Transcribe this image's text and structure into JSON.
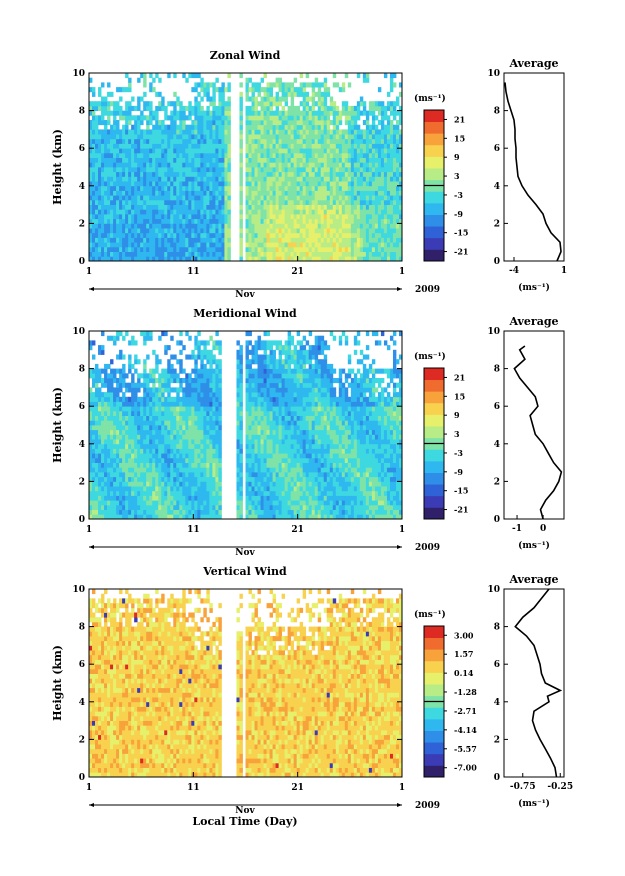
{
  "figure": {
    "xlabel": "Local Time (Day)",
    "ylabel": "Height (km)",
    "month": "Nov",
    "year": "2009",
    "avg_title": "Average",
    "unit": "(ms⁻¹)"
  },
  "chart_data": [
    {
      "type": "heatmap",
      "title": "Zonal Wind",
      "xlabel": "Local Time (Day)",
      "ylabel": "Height (km)",
      "x_ticks": [
        "1",
        "11",
        "21",
        "1"
      ],
      "y_ticks": [
        "0",
        "2",
        "4",
        "6",
        "8",
        "10"
      ],
      "ylim": [
        0,
        10
      ],
      "colorbar": {
        "unit": "(ms⁻¹)",
        "ticks": [
          "21",
          "15",
          "9",
          "3",
          "-3",
          "-9",
          "-15",
          "-21"
        ],
        "range": [
          -24,
          24
        ]
      },
      "gap_days": [
        [
          14.6,
          15.4
        ],
        [
          15.7,
          16.0
        ]
      ],
      "dense_top_km": {
        "west": 8.5,
        "mid": 9.5,
        "east": 8.5
      },
      "average": {
        "type": "line",
        "title": "Average",
        "xlabel": "(ms⁻¹)",
        "xlim": [
          -5,
          1
        ],
        "x_ticks": [
          "-4",
          "1"
        ],
        "y_ticks": [
          "0",
          "2",
          "4",
          "6",
          "8",
          "10"
        ],
        "height_km": [
          0,
          0.5,
          1,
          1.5,
          2,
          2.5,
          3,
          3.5,
          4,
          4.5,
          5,
          5.5,
          6,
          6.5,
          7,
          7.5,
          8,
          8.5,
          9,
          9.5
        ],
        "values": [
          0.3,
          0.7,
          0.6,
          -0.3,
          -0.8,
          -1.1,
          -1.8,
          -2.6,
          -3.2,
          -3.6,
          -3.7,
          -3.8,
          -3.8,
          -3.9,
          -3.9,
          -4.0,
          -4.3,
          -4.6,
          -4.8,
          -4.9
        ]
      }
    },
    {
      "type": "heatmap",
      "title": "Meridional Wind",
      "xlabel": "Local Time (Day)",
      "ylabel": "Height (km)",
      "x_ticks": [
        "1",
        "11",
        "21",
        "1"
      ],
      "y_ticks": [
        "0",
        "2",
        "4",
        "6",
        "8",
        "10"
      ],
      "ylim": [
        0,
        10
      ],
      "colorbar": {
        "unit": "(ms⁻¹)",
        "ticks": [
          "21",
          "15",
          "9",
          "3",
          "-3",
          "-9",
          "-15",
          "-21"
        ],
        "range": [
          -24,
          24
        ]
      },
      "gap_days": [
        [
          13.8,
          15.2
        ],
        [
          15.6,
          16.1
        ]
      ],
      "dense_top_km": {
        "west": 8.0,
        "mid": 9.5,
        "east": 8.0
      },
      "average": {
        "type": "line",
        "title": "Average",
        "xlabel": "(ms⁻¹)",
        "xlim": [
          -1.5,
          0.8
        ],
        "x_ticks": [
          "-1",
          "0"
        ],
        "y_ticks": [
          "0",
          "2",
          "4",
          "6",
          "8",
          "10"
        ],
        "height_km": [
          0,
          0.5,
          1,
          1.5,
          2,
          2.5,
          3,
          3.5,
          4,
          4.5,
          5,
          5.5,
          6,
          6.5,
          7,
          7.5,
          8,
          8.5,
          9,
          9.2
        ],
        "values": [
          0.0,
          -0.1,
          0.1,
          0.4,
          0.6,
          0.7,
          0.4,
          0.2,
          0.0,
          -0.3,
          -0.4,
          -0.5,
          -0.2,
          -0.3,
          -0.6,
          -0.9,
          -1.1,
          -0.7,
          -0.9,
          -0.7
        ]
      }
    },
    {
      "type": "heatmap",
      "title": "Vertical Wind",
      "xlabel": "Local Time (Day)",
      "ylabel": "Height (km)",
      "x_ticks": [
        "1",
        "11",
        "21",
        "1"
      ],
      "y_ticks": [
        "0",
        "2",
        "4",
        "6",
        "8",
        "10"
      ],
      "ylim": [
        0,
        10
      ],
      "colorbar": {
        "unit": "(ms⁻¹)",
        "ticks": [
          "3.00",
          "1.57",
          "0.14",
          "-1.28",
          "-2.71",
          "-4.14",
          "-5.57",
          "-7.00"
        ],
        "range": [
          -7.7,
          3.7
        ]
      },
      "gap_days": [
        [
          13.8,
          15.2
        ],
        [
          15.6,
          16.1
        ]
      ],
      "dense_top_km": {
        "west": 9.5,
        "mid": 8.0,
        "east": 9.5
      },
      "average": {
        "type": "line",
        "title": "Average",
        "xlabel": "(ms⁻¹)",
        "xlim": [
          -1.0,
          -0.2
        ],
        "x_ticks": [
          "-0.75",
          "-0.25"
        ],
        "y_ticks": [
          "0",
          "2",
          "4",
          "6",
          "8",
          "10"
        ],
        "height_km": [
          0,
          0.5,
          1,
          1.5,
          2,
          2.5,
          3,
          3.5,
          4,
          4.3,
          4.6,
          5,
          5.5,
          6,
          6.5,
          7,
          7.5,
          8,
          8.5,
          9,
          9.5,
          10
        ],
        "values": [
          -0.3,
          -0.32,
          -0.38,
          -0.45,
          -0.52,
          -0.58,
          -0.62,
          -0.6,
          -0.4,
          -0.42,
          -0.25,
          -0.45,
          -0.5,
          -0.52,
          -0.56,
          -0.6,
          -0.7,
          -0.85,
          -0.75,
          -0.6,
          -0.5,
          -0.4
        ]
      }
    }
  ]
}
